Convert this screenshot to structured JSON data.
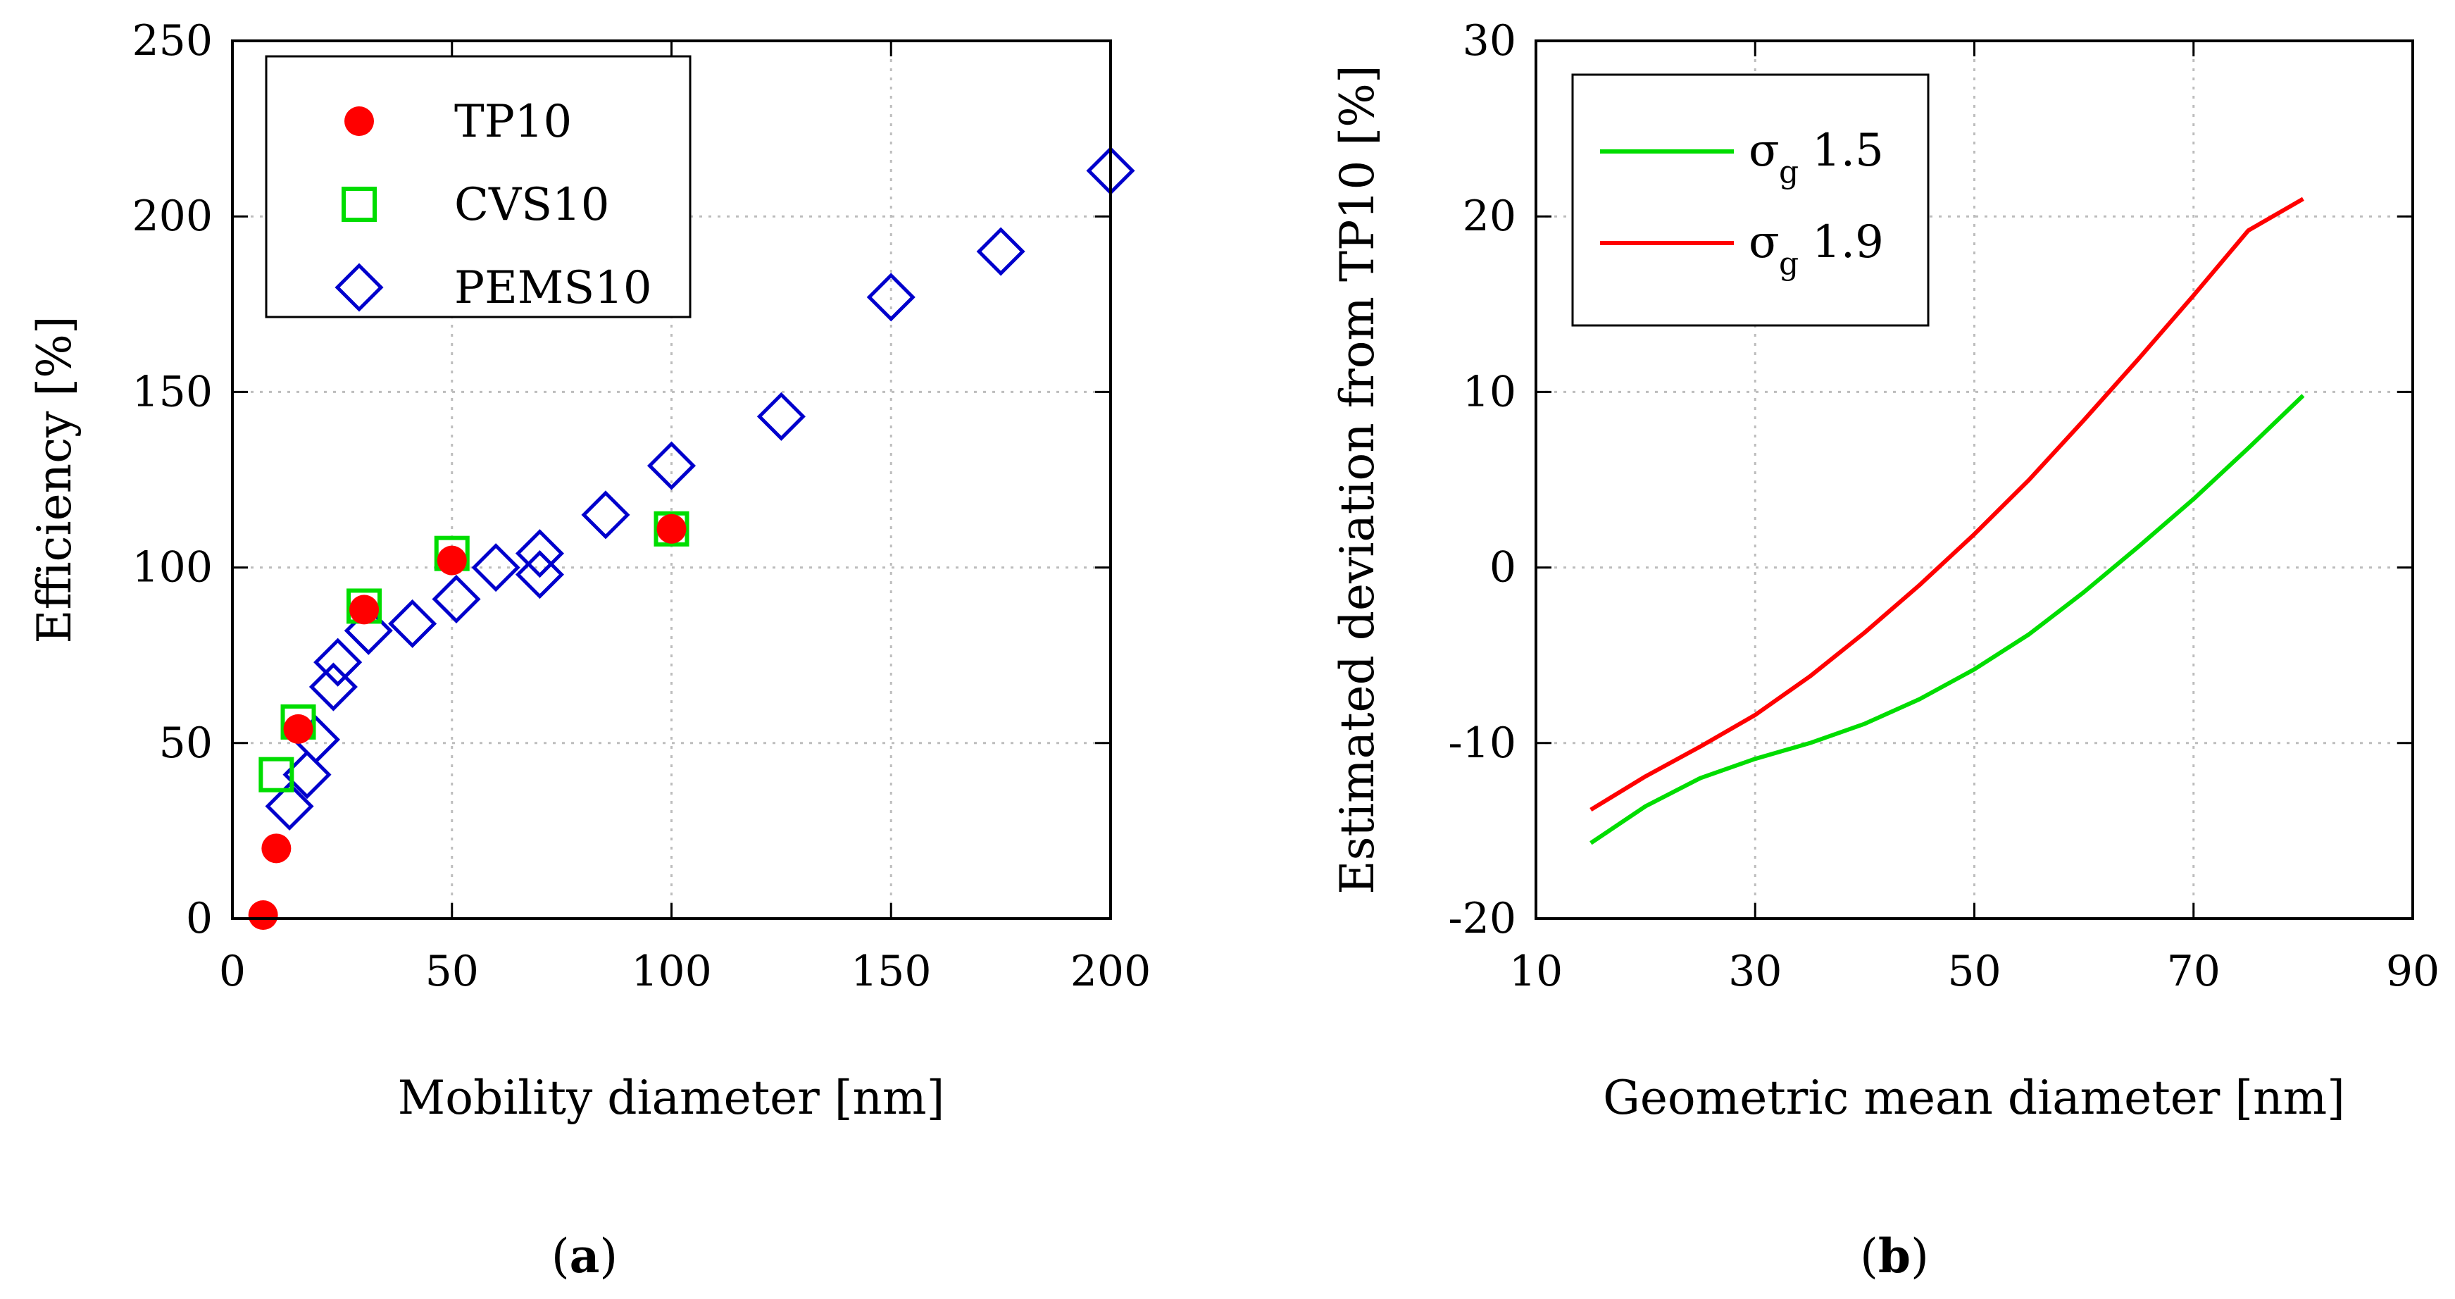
{
  "chart_data": [
    {
      "type": "scatter",
      "xlabel": "Mobility diameter [nm]",
      "ylabel": "Efficiency [%]",
      "xlim": [
        0,
        200
      ],
      "ylim": [
        0,
        250
      ],
      "xticks": [
        "0",
        "50",
        "100",
        "150",
        "200"
      ],
      "yticks": [
        "0",
        "50",
        "100",
        "150",
        "200",
        "250"
      ],
      "grid": true,
      "legend_position": "top-left",
      "panel_label": "a",
      "series": [
        {
          "name": "TP10",
          "marker": "filled-circle",
          "color": "#ff0000",
          "x": [
            7,
            10,
            15,
            30,
            50,
            100
          ],
          "y": [
            1,
            20,
            54,
            88,
            102,
            111
          ]
        },
        {
          "name": "CVS10",
          "marker": "open-square",
          "color": "#00dd00",
          "x": [
            10,
            15,
            30,
            50,
            100
          ],
          "y": [
            41,
            56,
            89,
            104,
            111
          ]
        },
        {
          "name": "PEMS10",
          "marker": "open-diamond",
          "color": "#0000cc",
          "x": [
            13,
            17,
            19,
            23,
            24,
            31,
            41,
            51,
            60,
            70,
            70,
            85,
            100,
            125,
            150,
            175,
            200
          ],
          "y": [
            32,
            41,
            51,
            66,
            73,
            82,
            84,
            91,
            100,
            98,
            104,
            115,
            129,
            143,
            177,
            190,
            213
          ]
        }
      ]
    },
    {
      "type": "line",
      "xlabel": "Geometric mean diameter [nm]",
      "ylabel": "Estimated deviation from TP10 [%]",
      "xlim": [
        10,
        90
      ],
      "ylim": [
        -20,
        30
      ],
      "xticks": [
        "10",
        "30",
        "50",
        "70",
        "90"
      ],
      "yticks": [
        "-20",
        "-10",
        "0",
        "10",
        "20",
        "30"
      ],
      "grid": true,
      "legend_position": "top-left",
      "panel_label": "b",
      "series": [
        {
          "name": "σg 1.5",
          "legend_symbol": "σ",
          "legend_subscript": "g",
          "legend_value": "1.5",
          "color": "#00dd00",
          "x": [
            15,
            20,
            25,
            30,
            35,
            40,
            45,
            50,
            55,
            60,
            65,
            70,
            75,
            80
          ],
          "y": [
            -15.7,
            -13.6,
            -12.0,
            -10.9,
            -10.0,
            -8.9,
            -7.5,
            -5.8,
            -3.8,
            -1.4,
            1.2,
            3.9,
            6.8,
            9.8
          ]
        },
        {
          "name": "σg 1.9",
          "legend_symbol": "σ",
          "legend_subscript": "g",
          "legend_value": "1.9",
          "color": "#ff0000",
          "x": [
            15,
            20,
            25,
            30,
            35,
            40,
            45,
            50,
            55,
            60,
            65,
            70,
            75,
            80
          ],
          "y": [
            -13.8,
            -11.9,
            -10.2,
            -8.4,
            -6.2,
            -3.7,
            -1.0,
            1.9,
            5.0,
            8.4,
            11.9,
            15.5,
            19.2,
            21.0
          ]
        }
      ]
    }
  ],
  "panel_labels": [
    "(a)",
    "(b)"
  ]
}
